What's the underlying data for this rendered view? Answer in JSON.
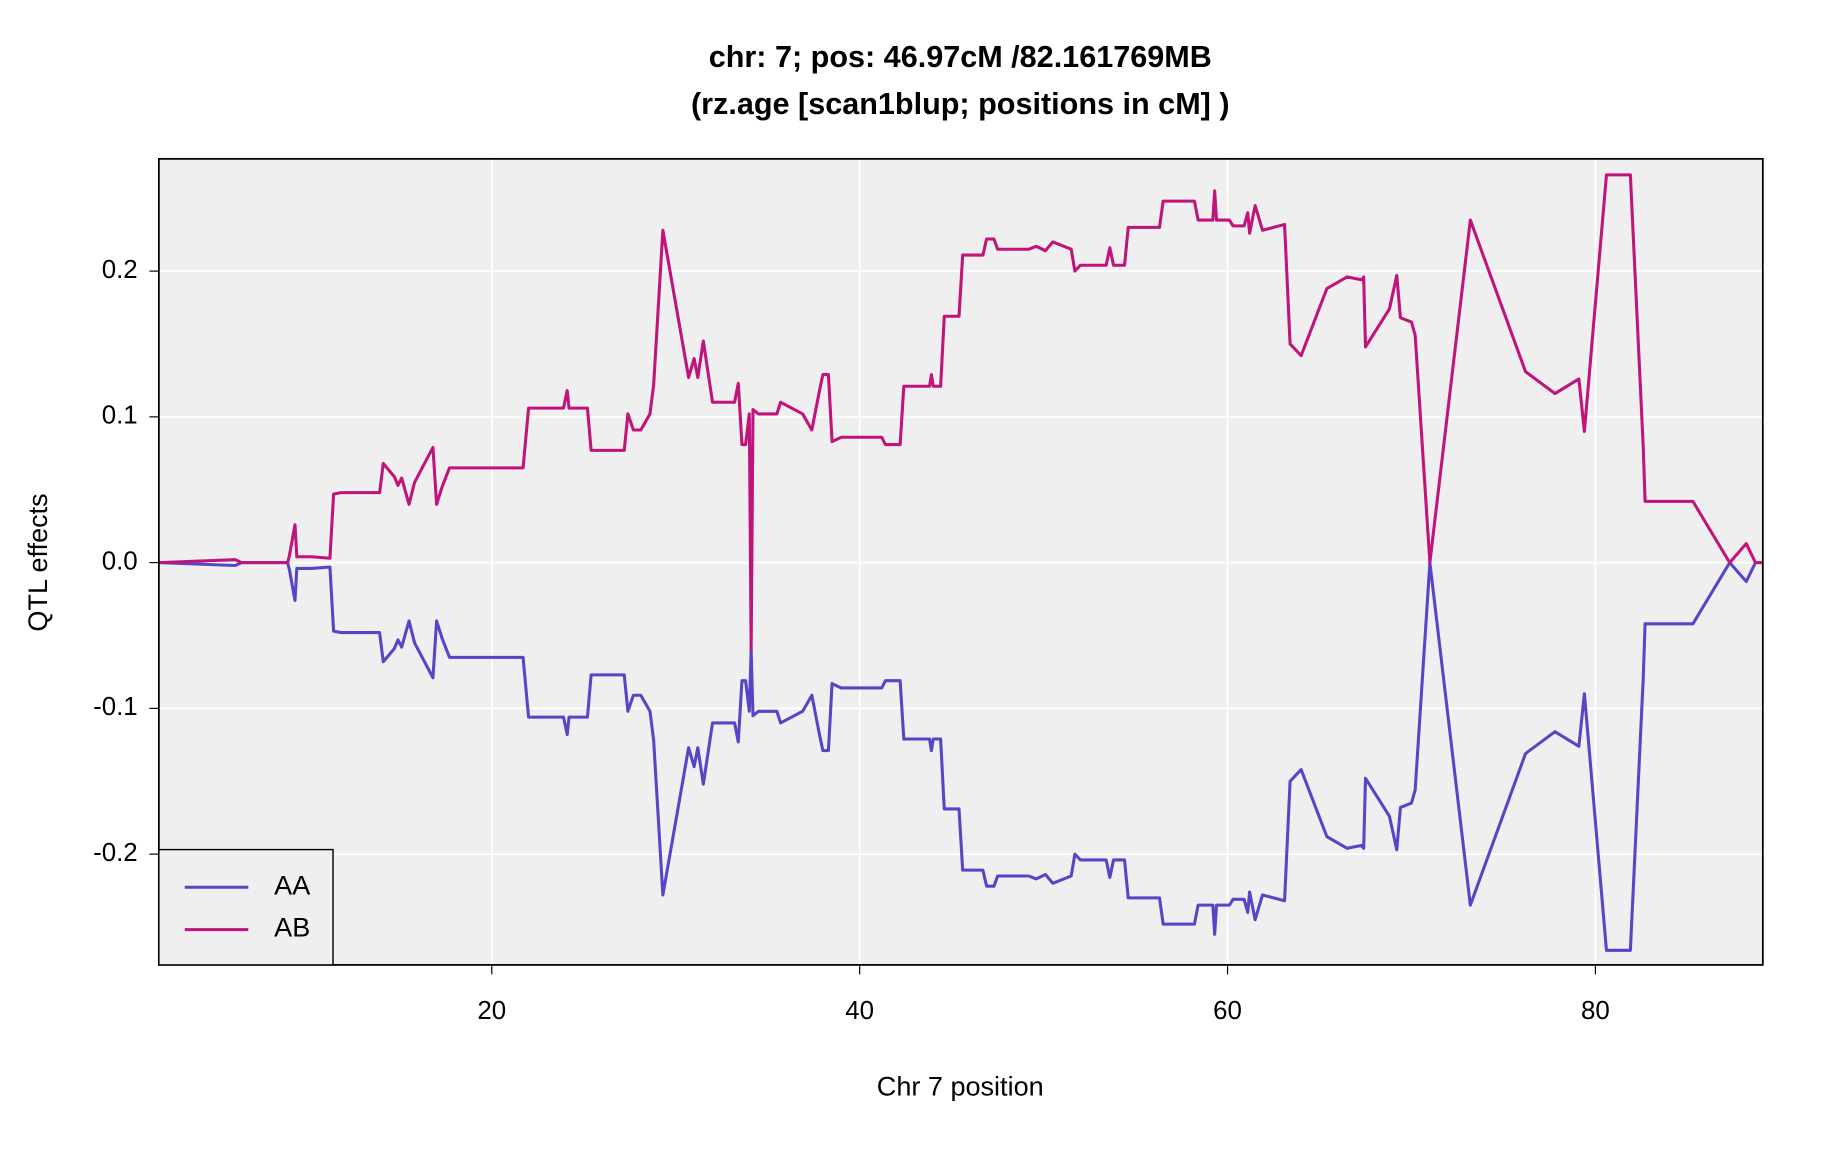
{
  "chart_data": {
    "type": "line",
    "title": "chr: 7; pos: 46.97cM /82.161769MB",
    "subtitle": "(rz.age [scan1blup; positions in cM] )",
    "x_label": "Chr 7 position",
    "y_label": "QTL effects",
    "xlim": [
      1.9,
      89.1
    ],
    "ylim": [
      -0.276,
      0.277
    ],
    "xticks": [
      20,
      40,
      60,
      80
    ],
    "yticks": [
      -0.2,
      -0.1,
      {
        "value": 0,
        "label": "0.0"
      },
      0.1,
      0.2
    ],
    "grid": true,
    "legend_position": "bottomleft",
    "x": [
      1.9,
      6.05,
      6.4,
      8.9,
      9.0,
      9.3,
      9.4,
      10.2,
      11.2,
      11.4,
      11.8,
      13.9,
      14.1,
      14.7,
      14.9,
      15.1,
      15.5,
      15.8,
      16.8,
      17.0,
      17.3,
      17.7,
      21.7,
      22.0,
      23.9,
      24.1,
      24.2,
      25.2,
      25.4,
      27.2,
      27.4,
      27.7,
      28.1,
      28.6,
      28.8,
      29.3,
      30.7,
      31.0,
      31.2,
      31.5,
      32.0,
      33.2,
      33.4,
      33.6,
      33.8,
      34.0,
      34.1,
      34.2,
      34.5,
      35.5,
      35.7,
      36.9,
      37.4,
      37.8,
      38.0,
      38.3,
      38.5,
      39.0,
      41.2,
      41.4,
      42.2,
      42.4,
      43.8,
      43.9,
      44.0,
      44.4,
      44.6,
      45.4,
      45.6,
      46.7,
      46.9,
      47.3,
      47.5,
      49.2,
      49.6,
      50.1,
      50.5,
      51.5,
      51.7,
      52.0,
      53.4,
      53.6,
      53.8,
      54.4,
      54.6,
      55.4,
      56.3,
      56.5,
      58.2,
      58.4,
      59.2,
      59.3,
      59.4,
      60.1,
      60.3,
      60.9,
      61.1,
      61.2,
      61.5,
      61.9,
      63.1,
      63.4,
      64.0,
      65.4,
      66.5,
      67.3,
      67.4,
      67.5,
      68.8,
      69.2,
      69.4,
      70.0,
      70.2,
      71.0,
      73.2,
      76.2,
      77.8,
      79.1,
      79.4,
      80.6,
      81.9,
      82.6,
      82.7,
      85.3,
      87.3,
      88.2,
      88.7,
      89.1
    ],
    "series": [
      {
        "name": "AA",
        "color": "#5546c8",
        "values": [
          0,
          -0.002,
          0,
          0,
          -0.005,
          -0.026,
          -0.004,
          -0.004,
          -0.003,
          -0.047,
          -0.048,
          -0.048,
          -0.068,
          -0.059,
          -0.053,
          -0.058,
          -0.04,
          -0.055,
          -0.079,
          -0.04,
          -0.052,
          -0.065,
          -0.065,
          -0.106,
          -0.106,
          -0.118,
          -0.106,
          -0.106,
          -0.077,
          -0.077,
          -0.102,
          -0.091,
          -0.091,
          -0.102,
          -0.122,
          -0.228,
          -0.127,
          -0.14,
          -0.127,
          -0.152,
          -0.11,
          -0.11,
          -0.123,
          -0.081,
          -0.081,
          -0.102,
          -0.06,
          -0.105,
          -0.102,
          -0.102,
          -0.11,
          -0.102,
          -0.091,
          -0.117,
          -0.129,
          -0.129,
          -0.083,
          -0.086,
          -0.086,
          -0.081,
          -0.081,
          -0.121,
          -0.121,
          -0.129,
          -0.121,
          -0.121,
          -0.169,
          -0.169,
          -0.211,
          -0.211,
          -0.222,
          -0.222,
          -0.215,
          -0.215,
          -0.217,
          -0.214,
          -0.22,
          -0.215,
          -0.2,
          -0.204,
          -0.204,
          -0.216,
          -0.204,
          -0.204,
          -0.23,
          -0.23,
          -0.23,
          -0.248,
          -0.248,
          -0.235,
          -0.235,
          -0.255,
          -0.235,
          -0.235,
          -0.231,
          -0.231,
          -0.24,
          -0.226,
          -0.245,
          -0.228,
          -0.232,
          -0.15,
          -0.142,
          -0.188,
          -0.196,
          -0.194,
          -0.196,
          -0.148,
          -0.174,
          -0.197,
          -0.168,
          -0.165,
          -0.156,
          0,
          -0.235,
          -0.131,
          -0.116,
          -0.126,
          -0.09,
          -0.266,
          -0.266,
          -0.079,
          -0.042,
          -0.042,
          0,
          -0.013,
          0,
          0
        ]
      },
      {
        "name": "AB",
        "color": "#c0137b",
        "values": [
          0,
          0.002,
          0,
          0,
          0.005,
          0.026,
          0.004,
          0.004,
          0.003,
          0.047,
          0.048,
          0.048,
          0.068,
          0.059,
          0.053,
          0.058,
          0.04,
          0.055,
          0.079,
          0.04,
          0.052,
          0.065,
          0.065,
          0.106,
          0.106,
          0.118,
          0.106,
          0.106,
          0.077,
          0.077,
          0.102,
          0.091,
          0.091,
          0.102,
          0.122,
          0.228,
          0.127,
          0.14,
          0.127,
          0.152,
          0.11,
          0.11,
          0.123,
          0.081,
          0.081,
          0.102,
          -0.06,
          0.105,
          0.102,
          0.102,
          0.11,
          0.102,
          0.091,
          0.117,
          0.129,
          0.129,
          0.083,
          0.086,
          0.086,
          0.081,
          0.081,
          0.121,
          0.121,
          0.129,
          0.121,
          0.121,
          0.169,
          0.169,
          0.211,
          0.211,
          0.222,
          0.222,
          0.215,
          0.215,
          0.217,
          0.214,
          0.22,
          0.215,
          0.2,
          0.204,
          0.204,
          0.216,
          0.204,
          0.204,
          0.23,
          0.23,
          0.23,
          0.248,
          0.248,
          0.235,
          0.235,
          0.255,
          0.235,
          0.235,
          0.231,
          0.231,
          0.24,
          0.226,
          0.245,
          0.228,
          0.232,
          0.15,
          0.142,
          0.188,
          0.196,
          0.194,
          0.196,
          0.148,
          0.174,
          0.197,
          0.168,
          0.165,
          0.156,
          0,
          0.235,
          0.131,
          0.116,
          0.126,
          0.09,
          0.266,
          0.266,
          0.079,
          0.042,
          0.042,
          0,
          0.013,
          0,
          0
        ]
      }
    ]
  }
}
